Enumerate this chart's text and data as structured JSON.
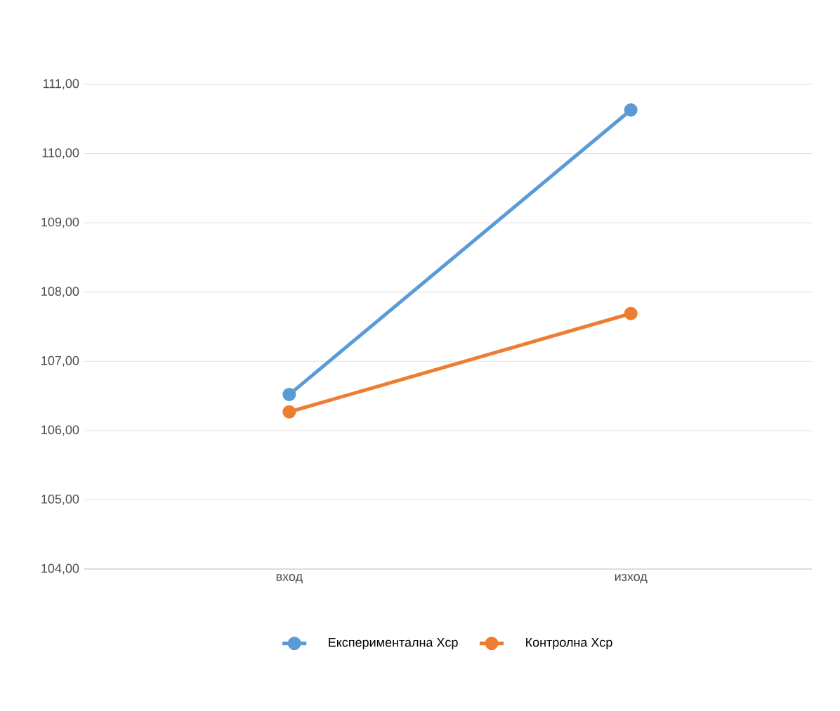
{
  "chart_data": {
    "type": "line",
    "categories": [
      "вход",
      "изход"
    ],
    "series": [
      {
        "name": "Експериментална Хср",
        "color": "#5b9bd5",
        "values": [
          106.52,
          110.63
        ]
      },
      {
        "name": "Контролна Хср",
        "color": "#ed7d31",
        "values": [
          106.27,
          107.69
        ]
      }
    ],
    "ylim": [
      104,
      111
    ],
    "yticks": [
      {
        "value": 104,
        "label": "104,00"
      },
      {
        "value": 105,
        "label": "105,00"
      },
      {
        "value": 106,
        "label": "106,00"
      },
      {
        "value": 107,
        "label": "107,00"
      },
      {
        "value": 108,
        "label": "108,00"
      },
      {
        "value": 109,
        "label": "109,00"
      },
      {
        "value": 110,
        "label": "110,00"
      },
      {
        "value": 111,
        "label": "111,00"
      }
    ],
    "grid": "y",
    "legend": "bottom",
    "marker": "circle",
    "line_style": "solid"
  }
}
